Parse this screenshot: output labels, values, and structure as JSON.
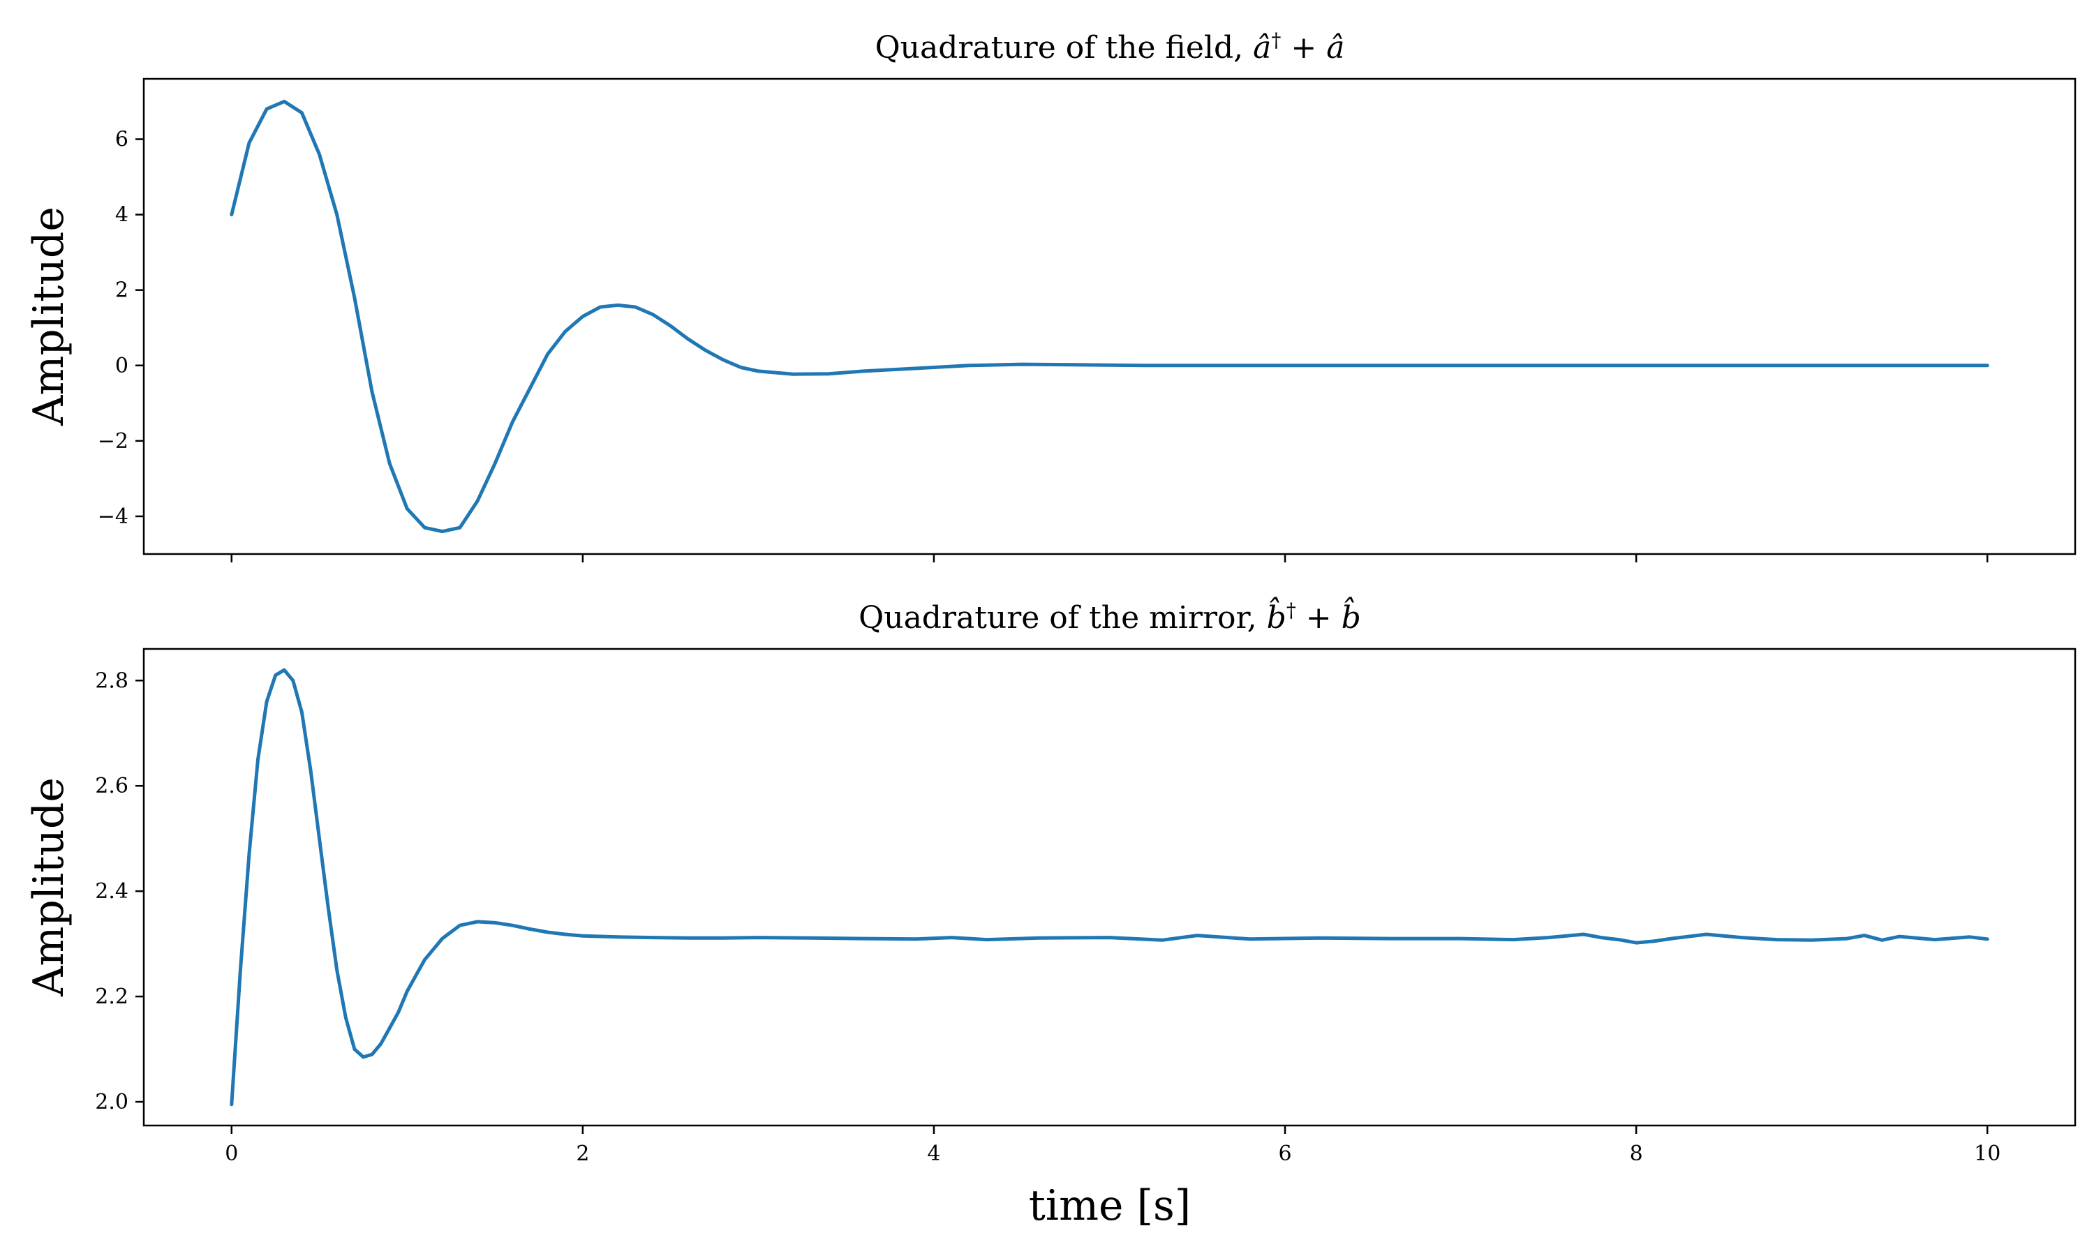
{
  "chart_data": [
    {
      "type": "line",
      "title": "Quadrature of the field, â† + â",
      "ylabel": "Amplitude",
      "xlabel": "",
      "xlim": [
        -0.5,
        10.5
      ],
      "ylim": [
        -5,
        7.6
      ],
      "xticks": [
        0,
        2,
        4,
        6,
        8,
        10
      ],
      "xtick_labels_visible": false,
      "yticks": [
        -4,
        -2,
        0,
        2,
        4,
        6
      ],
      "ytick_labels": [
        "−4",
        "−2",
        "0",
        "2",
        "4",
        "6"
      ],
      "grid": false,
      "series": [
        {
          "color": "#1f77b4",
          "x": [
            0,
            0.1,
            0.2,
            0.3,
            0.4,
            0.5,
            0.6,
            0.7,
            0.8,
            0.9,
            1.0,
            1.1,
            1.2,
            1.3,
            1.4,
            1.5,
            1.6,
            1.7,
            1.8,
            1.9,
            2.0,
            2.1,
            2.2,
            2.3,
            2.4,
            2.5,
            2.6,
            2.7,
            2.8,
            2.9,
            3.0,
            3.2,
            3.4,
            3.6,
            3.8,
            4.0,
            4.2,
            4.5,
            4.8,
            5.2,
            5.6,
            6.0,
            7.0,
            8.0,
            9.0,
            10.0
          ],
          "y": [
            4.0,
            5.9,
            6.8,
            7.0,
            6.7,
            5.6,
            4.0,
            1.8,
            -0.7,
            -2.6,
            -3.8,
            -4.3,
            -4.4,
            -4.3,
            -3.6,
            -2.6,
            -1.5,
            -0.6,
            0.3,
            0.9,
            1.3,
            1.55,
            1.6,
            1.55,
            1.35,
            1.05,
            0.7,
            0.4,
            0.15,
            -0.05,
            -0.15,
            -0.23,
            -0.22,
            -0.15,
            -0.1,
            -0.05,
            0.0,
            0.03,
            0.02,
            0.0,
            0.0,
            0.0,
            0.0,
            0.0,
            0.0,
            0.0
          ]
        }
      ]
    },
    {
      "type": "line",
      "title": "Quadrature of the mirror, b̂† + b̂",
      "ylabel": "Amplitude",
      "xlabel": "time [s]",
      "xlim": [
        -0.5,
        10.5
      ],
      "ylim": [
        1.955,
        2.86
      ],
      "xticks": [
        0,
        2,
        4,
        6,
        8,
        10
      ],
      "xtick_labels": [
        "0",
        "2",
        "4",
        "6",
        "8",
        "10"
      ],
      "yticks": [
        2.0,
        2.2,
        2.4,
        2.6,
        2.8
      ],
      "ytick_labels": [
        "2.0",
        "2.2",
        "2.4",
        "2.6",
        "2.8"
      ],
      "grid": false,
      "series": [
        {
          "color": "#1f77b4",
          "x": [
            0,
            0.05,
            0.1,
            0.15,
            0.2,
            0.25,
            0.3,
            0.35,
            0.4,
            0.45,
            0.5,
            0.55,
            0.6,
            0.65,
            0.7,
            0.75,
            0.8,
            0.85,
            0.9,
            0.95,
            1.0,
            1.05,
            1.1,
            1.2,
            1.3,
            1.4,
            1.5,
            1.6,
            1.7,
            1.8,
            1.9,
            2.0,
            2.2,
            2.4,
            2.6,
            2.8,
            3.0,
            3.3,
            3.6,
            3.9,
            4.1,
            4.3,
            4.6,
            5.0,
            5.3,
            5.5,
            5.8,
            6.2,
            6.6,
            7.0,
            7.3,
            7.5,
            7.7,
            7.8,
            7.9,
            8.0,
            8.1,
            8.2,
            8.4,
            8.6,
            8.8,
            9.0,
            9.2,
            9.3,
            9.4,
            9.5,
            9.7,
            9.9,
            10.0
          ],
          "y": [
            1.995,
            2.25,
            2.47,
            2.65,
            2.76,
            2.81,
            2.82,
            2.8,
            2.74,
            2.63,
            2.5,
            2.37,
            2.25,
            2.16,
            2.1,
            2.085,
            2.09,
            2.11,
            2.14,
            2.17,
            2.21,
            2.24,
            2.27,
            2.31,
            2.335,
            2.342,
            2.34,
            2.335,
            2.328,
            2.322,
            2.318,
            2.315,
            2.313,
            2.312,
            2.311,
            2.311,
            2.312,
            2.311,
            2.31,
            2.309,
            2.312,
            2.308,
            2.311,
            2.312,
            2.307,
            2.316,
            2.309,
            2.311,
            2.31,
            2.31,
            2.308,
            2.312,
            2.318,
            2.312,
            2.308,
            2.302,
            2.305,
            2.31,
            2.318,
            2.312,
            2.308,
            2.307,
            2.31,
            2.316,
            2.307,
            2.314,
            2.308,
            2.313,
            2.309
          ]
        }
      ]
    }
  ]
}
